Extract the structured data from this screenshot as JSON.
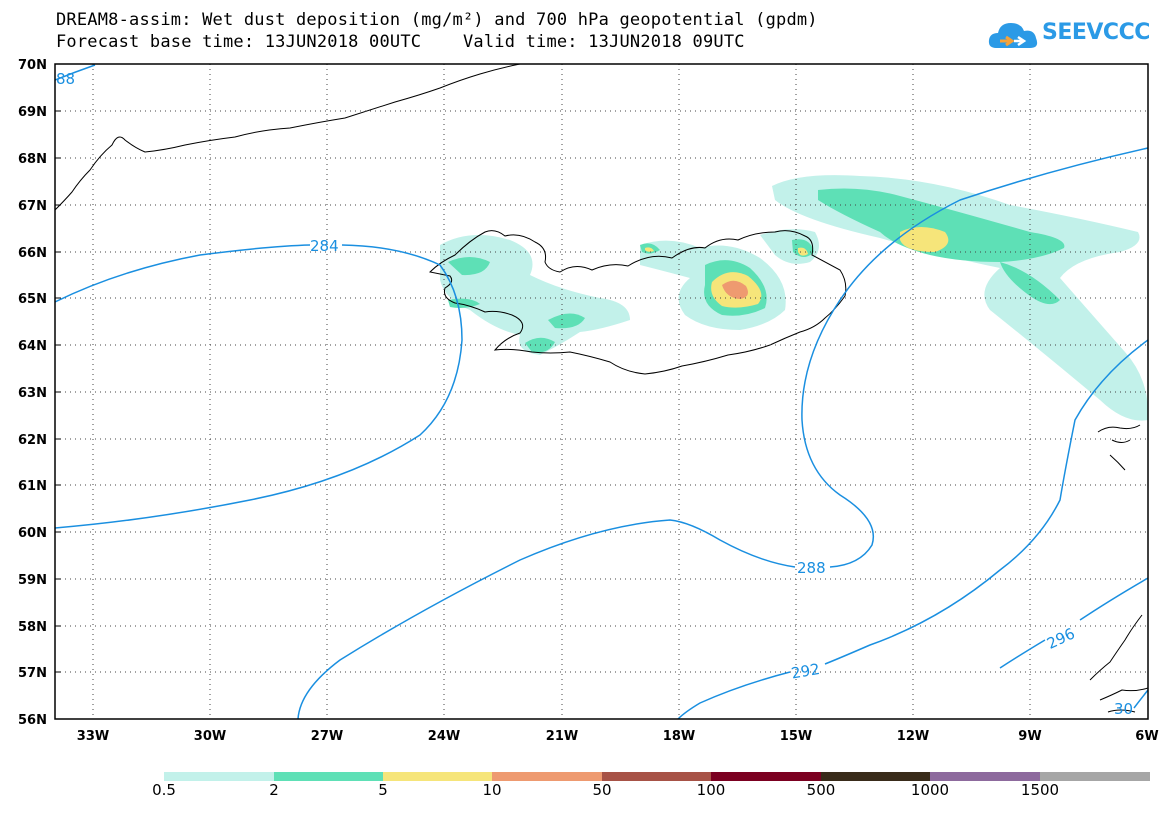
{
  "header": {
    "line1": "DREAM8-assim: Wet dust deposition (mg/m²) and 700 hPa geopotential (gpdm)",
    "line2": "Forecast base time: 13JUN2018 00UTC    Valid time: 13JUN2018 09UTC"
  },
  "logo": {
    "text": "SEEVCCC",
    "icon": "cloud-icon",
    "color": "#2b9ae6"
  },
  "map": {
    "lat_labels": [
      "70N",
      "69N",
      "68N",
      "67N",
      "66N",
      "65N",
      "64N",
      "63N",
      "62N",
      "61N",
      "60N",
      "59N",
      "58N",
      "57N",
      "56N"
    ],
    "lon_labels": [
      "33W",
      "30W",
      "27W",
      "24W",
      "21W",
      "18W",
      "15W",
      "12W",
      "9W",
      "6W"
    ],
    "contour_labels": [
      "88",
      "284",
      "288",
      "292",
      "296",
      "30"
    ],
    "contour_color": "#1a8fe0"
  },
  "legend": {
    "labels": [
      "0.5",
      "2",
      "5",
      "10",
      "50",
      "100",
      "500",
      "1000",
      "1500"
    ],
    "colors": [
      "#c2f1ea",
      "#5ee0b6",
      "#f6e57a",
      "#ee9a70",
      "#a75246",
      "#7b0021",
      "#392b1a",
      "#8d6a9d",
      "#a6a6a6"
    ]
  }
}
